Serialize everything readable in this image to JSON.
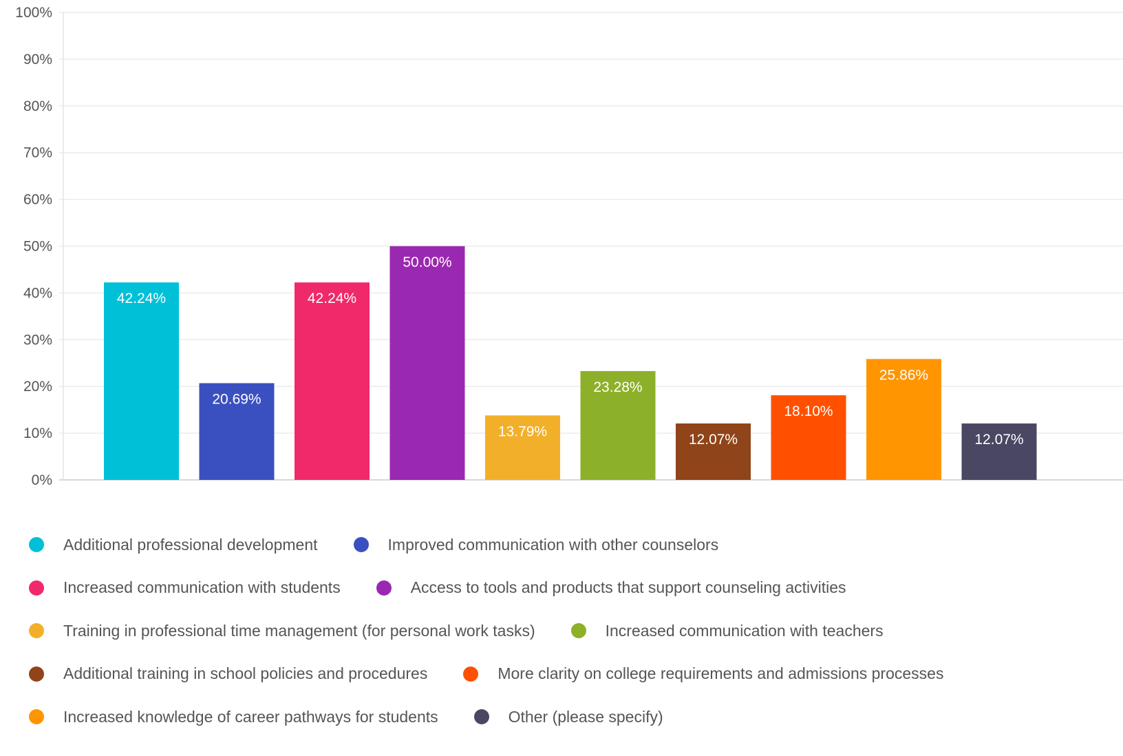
{
  "chart_data": {
    "type": "bar",
    "categories": [
      "Additional professional development",
      "Improved communication with other counselors",
      "Increased communication with students",
      "Access to tools and products that support counseling activities",
      "Training in professional time management (for personal work tasks)",
      "Increased communication with teachers",
      "Additional training in school policies and procedures",
      "More clarity on college requirements and admissions processes",
      "Increased knowledge of career pathways for students",
      "Other (please specify)"
    ],
    "values": [
      42.24,
      20.69,
      42.24,
      50.0,
      13.79,
      23.28,
      12.07,
      18.1,
      25.86,
      12.07
    ],
    "data_labels": [
      "42.24%",
      "20.69%",
      "42.24%",
      "50.00%",
      "13.79%",
      "23.28%",
      "12.07%",
      "18.10%",
      "25.86%",
      "12.07%"
    ],
    "colors": [
      "#00c0d8",
      "#3a50c0",
      "#f0296a",
      "#9b28b0",
      "#f2b02a",
      "#8db02a",
      "#8f4419",
      "#ff5000",
      "#ff9500",
      "#4a4763"
    ],
    "ylim": [
      0,
      100
    ],
    "y_ticks": [
      "0%",
      "10%",
      "20%",
      "30%",
      "40%",
      "50%",
      "60%",
      "70%",
      "80%",
      "90%",
      "100%"
    ],
    "grid": true,
    "legend_position": "bottom",
    "title": "",
    "xlabel": "",
    "ylabel": ""
  }
}
